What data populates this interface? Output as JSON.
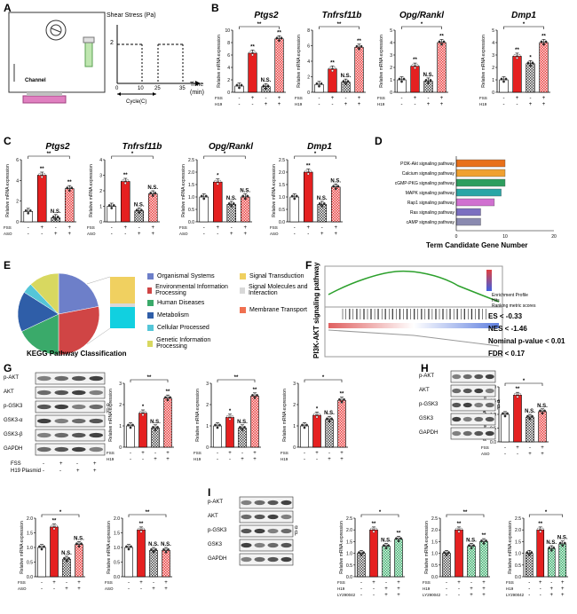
{
  "panels": {
    "A": "A",
    "B": "B",
    "C": "C",
    "D": "D",
    "E": "E",
    "F": "F",
    "G": "G",
    "H": "H",
    "I": "I"
  },
  "panelA": {
    "title": "Shear Stress (Pa)",
    "channel": "Channel",
    "time": "Time",
    "time_unit": "(min)",
    "cycle": "Cycle(C)",
    "y_tick": "2",
    "x_ticks": [
      "0",
      "10",
      "25",
      "35"
    ]
  },
  "panelB": {
    "genes": [
      "Ptgs2",
      "Tnfrsf11b",
      "Opg/Rankl",
      "Dmp1"
    ],
    "ylabel": "Relative mRNA expression",
    "rows": [
      "FSS",
      "H19 Plasmid"
    ],
    "row_values": [
      [
        "-",
        "+",
        "-",
        "+"
      ],
      [
        "-",
        "-",
        "+",
        "+"
      ]
    ]
  },
  "panelC": {
    "genes": [
      "Ptgs2",
      "Tnfrsf11b",
      "Opg/Rankl",
      "Dmp1"
    ],
    "ylabel": "Relative mRNA expression",
    "rows": [
      "FSS",
      "ASO"
    ],
    "row_values": [
      [
        "-",
        "+",
        "-",
        "+"
      ],
      [
        "-",
        "-",
        "+",
        "+"
      ]
    ]
  },
  "panelD": {
    "xlabel": "Term Candidate Gene Number",
    "x_ticks": [
      "0",
      "10",
      "20"
    ],
    "pathways": [
      "PI3K-Akt signaling pathway",
      "Calcium signaling pathway",
      "cGMP-PKG signaling pathway",
      "MAPK signaling pathway",
      "Rap1 signaling pathway",
      "Ras signaling pathway",
      "cAMP signaling pathway"
    ],
    "values": [
      10,
      10,
      10,
      9.2,
      7.8,
      5,
      5
    ],
    "colors": [
      "#e8701a",
      "#f0a030",
      "#2e9e5e",
      "#2aa6a6",
      "#d070d0",
      "#7b6fc0",
      "#8a8ab0"
    ]
  },
  "panelE": {
    "title": "KEGG Pathway Classification",
    "legend": [
      "Organismal Systems",
      "Environmental Information Processing",
      "Human Diseases",
      "Metabolism",
      "Cellular Processed",
      "Genetic Information Processing",
      "Signal Transduction",
      "Signal Molecules and Interaction",
      "Membrane Transport"
    ],
    "legend_colors": [
      "#6d7fc9",
      "#d04545",
      "#3aaa6a",
      "#2f5ea8",
      "#55c6d8",
      "#d8d860",
      "#f0d060",
      "#d8d8d8",
      "#f07050"
    ]
  },
  "panelF": {
    "ylabel": "PI3K-AKT signaling pathway",
    "stats": [
      "ES < -0.33",
      "NES < -1.46",
      "Nominal p-value < 0.01",
      "FDR < 0.17"
    ],
    "legend": [
      "Enrichment Profile",
      "Hits",
      "Ranking metric scores"
    ]
  },
  "panelG": {
    "blots": [
      "p-AKT",
      "AKT",
      "p-GSK3",
      "GSK3-α",
      "GSK3-β",
      "GAPDH"
    ],
    "alpha": "α",
    "beta": "β",
    "rows": [
      "FSS",
      "H19 Plasmid"
    ],
    "row_values": [
      [
        "-",
        "+",
        "-",
        "+"
      ],
      [
        "-",
        "-",
        "+",
        "+"
      ]
    ],
    "charts": [
      "p-AKT/AKT",
      "p-GSKα/GSKα",
      "p-GSK3β/GSK3β"
    ]
  },
  "panelH": {
    "blots": [
      "p-AKT",
      "AKT",
      "p-GSK3",
      "GSK3",
      "GAPDH"
    ],
    "rows": [
      "FSS",
      "ASO"
    ],
    "chart": "p-AKT/AKT"
  },
  "panelGbottom": {
    "charts": [
      "p-GSK3α/GSKα",
      "p-GSK3β/GSK3β"
    ]
  },
  "panelI": {
    "blots": [
      "p-AKT",
      "AKT",
      "p-GSK3",
      "GSK3",
      "GAPDH"
    ],
    "rows": [
      "FSS",
      "H19 Plasmid",
      "LY290042"
    ],
    "charts": [
      "p-AKT/AKT",
      "p-GSK3α/GSKα",
      "p-GSK3β/GSK3β"
    ]
  },
  "sig": {
    "ss": "**",
    "s": "*",
    "ns": "N.S."
  },
  "chart_data": [
    {
      "type": "bar",
      "panel": "B",
      "title": "Ptgs2",
      "categories": [
        "ctrl",
        "FSS",
        "H19",
        "FSS+H19"
      ],
      "values": [
        1.0,
        6.3,
        0.9,
        8.6
      ],
      "ylim": [
        0,
        10
      ],
      "y_ticks": [
        "0",
        "2",
        "4",
        "6",
        "8",
        "10"
      ],
      "marks": [
        "",
        "**",
        "N.S.",
        "**"
      ]
    },
    {
      "type": "bar",
      "panel": "B",
      "title": "Tnfrsf11b",
      "categories": [
        "ctrl",
        "FSS",
        "H19",
        "FSS+H19"
      ],
      "values": [
        1.0,
        3.0,
        1.3,
        5.8
      ],
      "ylim": [
        0,
        8
      ],
      "y_ticks": [
        "0",
        "2",
        "4",
        "6",
        "8"
      ],
      "marks": [
        "",
        "**",
        "N.S.",
        "**"
      ]
    },
    {
      "type": "bar",
      "panel": "B",
      "title": "Opg/Rankl",
      "categories": [
        "ctrl",
        "FSS",
        "H19",
        "FSS+H19"
      ],
      "values": [
        1.0,
        2.1,
        0.9,
        4.0
      ],
      "ylim": [
        0,
        5
      ],
      "y_ticks": [
        "0",
        "1",
        "2",
        "3",
        "4",
        "5"
      ],
      "marks": [
        "",
        "**",
        "N.S.",
        "**"
      ]
    },
    {
      "type": "bar",
      "panel": "B",
      "title": "Dmp1",
      "categories": [
        "ctrl",
        "FSS",
        "H19",
        "FSS+H19"
      ],
      "values": [
        1.0,
        2.9,
        2.3,
        4.0
      ],
      "ylim": [
        0,
        5
      ],
      "y_ticks": [
        "0",
        "1",
        "2",
        "3",
        "4",
        "5"
      ],
      "marks": [
        "",
        "**",
        "*",
        "**"
      ]
    },
    {
      "type": "bar",
      "panel": "C",
      "title": "Ptgs2",
      "categories": [
        "ctrl",
        "FSS",
        "ASO",
        "FSS+ASO"
      ],
      "values": [
        1.0,
        4.5,
        0.4,
        3.2
      ],
      "ylim": [
        0,
        6
      ],
      "y_ticks": [
        "0",
        "2",
        "4",
        "6"
      ],
      "marks": [
        "",
        "**",
        "N.S.",
        "**"
      ]
    },
    {
      "type": "bar",
      "panel": "C",
      "title": "Tnfrsf11b",
      "categories": [
        "ctrl",
        "FSS",
        "ASO",
        "FSS+ASO"
      ],
      "values": [
        1.0,
        2.6,
        0.7,
        1.8
      ],
      "ylim": [
        0,
        4
      ],
      "y_ticks": [
        "0",
        "1",
        "2",
        "3",
        "4"
      ],
      "marks": [
        "",
        "**",
        "N.S.",
        "N.S."
      ]
    },
    {
      "type": "bar",
      "panel": "C",
      "title": "Opg/Rankl",
      "categories": [
        "ctrl",
        "FSS",
        "ASO",
        "FSS+ASO"
      ],
      "values": [
        1.0,
        1.6,
        0.7,
        1.0
      ],
      "ylim": [
        0,
        2.5
      ],
      "y_ticks": [
        "0.0",
        "0.5",
        "1.0",
        "1.5",
        "2.0",
        "2.5"
      ],
      "marks": [
        "",
        "*",
        "N.S.",
        "N.S."
      ]
    },
    {
      "type": "bar",
      "panel": "C",
      "title": "Dmp1",
      "categories": [
        "ctrl",
        "FSS",
        "ASO",
        "FSS+ASO"
      ],
      "values": [
        1.0,
        2.0,
        0.7,
        1.4
      ],
      "ylim": [
        0,
        2.5
      ],
      "y_ticks": [
        "0.0",
        "0.5",
        "1.0",
        "1.5",
        "2.0",
        "2.5"
      ],
      "marks": [
        "",
        "**",
        "N.S.",
        "N.S."
      ]
    },
    {
      "type": "bar",
      "panel": "G",
      "title": "p-AKT/AKT",
      "categories": [
        "ctrl",
        "FSS",
        "H19",
        "FSS+H19"
      ],
      "values": [
        1.0,
        1.6,
        0.9,
        2.3
      ],
      "ylim": [
        0,
        3
      ],
      "y_ticks": [
        "0",
        "1",
        "2",
        "3"
      ],
      "marks": [
        "",
        "*",
        "N.S.",
        "**"
      ]
    },
    {
      "type": "bar",
      "panel": "G",
      "title": "p-GSKα/GSKα",
      "categories": [
        "ctrl",
        "FSS",
        "H19",
        "FSS+H19"
      ],
      "values": [
        1.0,
        1.4,
        0.9,
        2.4
      ],
      "ylim": [
        0,
        3
      ],
      "y_ticks": [
        "0",
        "1",
        "2",
        "3"
      ],
      "marks": [
        "",
        "*",
        "N.S.",
        "**"
      ]
    },
    {
      "type": "bar",
      "panel": "G",
      "title": "p-GSK3β/GSK3β",
      "categories": [
        "ctrl",
        "FSS",
        "H19",
        "FSS+H19"
      ],
      "values": [
        1.0,
        1.5,
        1.3,
        2.2
      ],
      "ylim": [
        0,
        3
      ],
      "y_ticks": [
        "0",
        "1",
        "2",
        "3"
      ],
      "marks": [
        "",
        "*",
        "N.S.",
        "**"
      ]
    },
    {
      "type": "bar",
      "panel": "H",
      "title": "p-AKT/AKT",
      "categories": [
        "ctrl",
        "FSS",
        "ASO",
        "FSS+ASO"
      ],
      "values": [
        1.0,
        1.7,
        0.9,
        1.1
      ],
      "ylim": [
        0,
        2
      ],
      "y_ticks": [
        "0.0",
        "0.5",
        "1.0",
        "1.5",
        "2.0"
      ],
      "marks": [
        "",
        "**",
        "N.S.",
        "N.S."
      ]
    },
    {
      "type": "bar",
      "panel": "G2",
      "title": "p-GSK3α/GSKα",
      "categories": [
        "ctrl",
        "FSS",
        "ASO",
        "FSS+ASO"
      ],
      "values": [
        1.0,
        1.7,
        0.6,
        1.1
      ],
      "ylim": [
        0,
        2
      ],
      "y_ticks": [
        "0.0",
        "0.5",
        "1.0",
        "1.5",
        "2.0"
      ],
      "marks": [
        "",
        "**",
        "N.S.",
        "N.S."
      ]
    },
    {
      "type": "bar",
      "panel": "G2",
      "title": "p-GSK3β/GSK3β",
      "categories": [
        "ctrl",
        "FSS",
        "ASO",
        "FSS+ASO"
      ],
      "values": [
        1.0,
        1.6,
        0.9,
        0.9
      ],
      "ylim": [
        0,
        2
      ],
      "y_ticks": [
        "0.0",
        "0.5",
        "1.0",
        "1.5",
        "2.0"
      ],
      "marks": [
        "",
        "**",
        "N.S.",
        "N.S."
      ]
    },
    {
      "type": "bar",
      "panel": "I",
      "title": "p-AKT/AKT",
      "categories": [
        "ctrl",
        "FSS",
        "FSS+H19+LY",
        "FSS+LY"
      ],
      "values": [
        1.0,
        2.0,
        1.3,
        1.6
      ],
      "ylim": [
        0,
        2.5
      ],
      "y_ticks": [
        "0.0",
        "0.5",
        "1.0",
        "1.5",
        "2.0",
        "2.5"
      ],
      "marks": [
        "",
        "**",
        "N.S.",
        "**"
      ]
    },
    {
      "type": "bar",
      "panel": "I",
      "title": "p-GSK3α/GSKα",
      "categories": [
        "ctrl",
        "FSS",
        "FSS+H19+LY",
        "FSS+LY"
      ],
      "values": [
        1.0,
        2.0,
        1.3,
        1.5
      ],
      "ylim": [
        0,
        2.5
      ],
      "y_ticks": [
        "0.0",
        "0.5",
        "1.0",
        "1.5",
        "2.0",
        "2.5"
      ],
      "marks": [
        "",
        "**",
        "N.S.",
        "**"
      ]
    },
    {
      "type": "bar",
      "panel": "I",
      "title": "p-GSK3β/GSK3β",
      "categories": [
        "ctrl",
        "FSS",
        "FSS+H19+LY",
        "FSS+LY"
      ],
      "values": [
        1.0,
        2.0,
        1.2,
        1.4
      ],
      "ylim": [
        0,
        2.5
      ],
      "y_ticks": [
        "0.0",
        "0.5",
        "1.0",
        "1.5",
        "2.0",
        "2.5"
      ],
      "marks": [
        "",
        "**",
        "N.S.",
        "N.S."
      ]
    }
  ]
}
